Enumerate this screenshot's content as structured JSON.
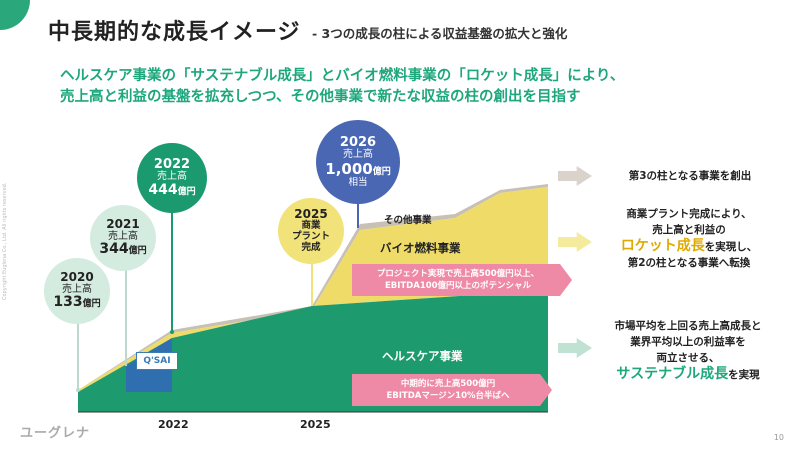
{
  "page": {
    "title": "中長期的な成長イメージ",
    "subtitle": "- 3つの成長の柱による収益基盤の拡大と強化",
    "headline_line1": "ヘルスケア事業の「サステナブル成長」とバイオ燃料事業の「ロケット成長」により、",
    "headline_line2": "売上高と利益の基盤を拡充しつつ、その他事業で新たな収益の柱の創出を目指す",
    "logo": "ユーグレナ",
    "page_number": "10",
    "side_credit": "Copyright Euglena Co., Ltd. All rights reserved."
  },
  "chart_data": {
    "type": "area",
    "x_axis_labels": [
      "2022",
      "2025"
    ],
    "bands": [
      {
        "name": "ヘルスケア事業",
        "color": "#1e9a6f"
      },
      {
        "name": "バイオ燃料事業",
        "color": "#efdc68"
      },
      {
        "name": "その他事業",
        "color": "#c8bfb5"
      }
    ],
    "milestones": [
      {
        "year": "2020",
        "label": "売上高",
        "value": "133",
        "unit": "億円"
      },
      {
        "year": "2021",
        "label": "売上高",
        "value": "344",
        "unit": "億円"
      },
      {
        "year": "2022",
        "label": "売上高",
        "value": "444",
        "unit": "億円"
      },
      {
        "year": "2025",
        "label1": "商業",
        "label2": "プラント",
        "label3": "完成"
      },
      {
        "year": "2026",
        "label": "売上高",
        "value": "1,000",
        "unit": "億円",
        "suffix": "相当"
      }
    ],
    "annotations": {
      "biofuel_target_1": "プロジェクト実現で売上高500億円以上、",
      "biofuel_target_2": "EBITDA100億円以上のポテンシャル",
      "healthcare_target_1": "中期的に売上高500億円",
      "healthcare_target_2": "EBITDAマージン10%台半ばへ",
      "qsai_label": "Q'SAI"
    }
  },
  "right_panel": {
    "other_desc": "第3の柱となる事業を創出",
    "biofuel_desc_1": "商業プラント完成により、",
    "biofuel_desc_2": "売上高と利益の",
    "biofuel_desc_em": "ロケット成長",
    "biofuel_desc_3": "を実現し、",
    "biofuel_desc_4": "第2の柱となる事業へ転換",
    "health_desc_1": "市場平均を上回る売上高成長と",
    "health_desc_2": "業界平均以上の利益率を",
    "health_desc_3": "両立させる、",
    "health_desc_em": "サステナブル成長",
    "health_desc_4": "を実現"
  },
  "colors": {
    "accent_green": "#1ea77c",
    "healthcare": "#1e9a6f",
    "biofuel": "#efdc68",
    "other": "#c8bfb5",
    "pink": "#ee8aa6",
    "navy_bubble": "#4a67b4"
  }
}
